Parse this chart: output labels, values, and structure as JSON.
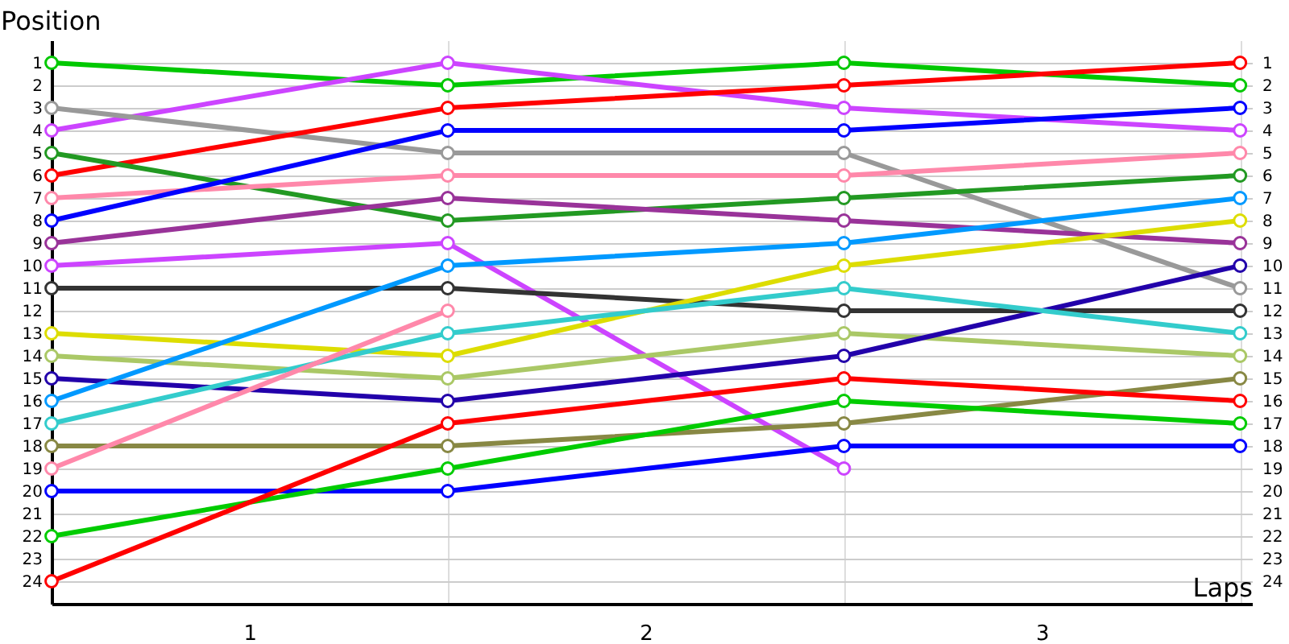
{
  "chart_data": {
    "type": "line",
    "xlabel": "Laps",
    "ylabel": "Position",
    "x": [
      0,
      1,
      2,
      3
    ],
    "xlim": [
      0,
      3.03
    ],
    "xticks": [
      {
        "value": 0,
        "label": null
      },
      {
        "value": 0.5,
        "label": "1"
      },
      {
        "value": 1,
        "label": null
      },
      {
        "value": 1.5,
        "label": "2"
      },
      {
        "value": 2,
        "label": null
      },
      {
        "value": 2.5,
        "label": "3"
      },
      {
        "value": 3,
        "label": null
      }
    ],
    "ylim": [
      25,
      0
    ],
    "yticks": [
      1,
      2,
      3,
      4,
      5,
      6,
      7,
      8,
      9,
      10,
      11,
      12,
      13,
      14,
      15,
      16,
      17,
      18,
      19,
      20,
      21,
      22,
      23,
      24
    ],
    "y2lim": [
      25,
      0
    ],
    "y2ticks": [
      1,
      2,
      3,
      4,
      5,
      6,
      7,
      8,
      9,
      10,
      11,
      12,
      13,
      14,
      15,
      16,
      17,
      18,
      19,
      20,
      21,
      22,
      23,
      24
    ],
    "grid": true,
    "marker": "circle",
    "line_style": "solid",
    "series": [
      {
        "color": "#00c800",
        "values": [
          1,
          2,
          1,
          2
        ]
      },
      {
        "color": "#cc44ff",
        "values": [
          4,
          1,
          3,
          4
        ]
      },
      {
        "color": "#999999",
        "values": [
          3,
          5,
          5,
          11
        ]
      },
      {
        "color": "#ff0000",
        "values": [
          6,
          3,
          2,
          1
        ]
      },
      {
        "color": "#229922",
        "values": [
          5,
          8,
          7,
          6
        ]
      },
      {
        "color": "#ff88aa",
        "values": [
          7,
          6,
          6,
          5
        ]
      },
      {
        "color": "#0000ff",
        "values": [
          8,
          4,
          4,
          3
        ]
      },
      {
        "color": "#993399",
        "values": [
          9,
          7,
          8,
          9
        ]
      },
      {
        "color": "#cc44ff",
        "values": [
          10,
          9,
          19,
          null
        ]
      },
      {
        "color": "#333333",
        "values": [
          11,
          11,
          12,
          12
        ]
      },
      {
        "color": "#dddd00",
        "values": [
          13,
          14,
          10,
          8
        ]
      },
      {
        "color": "#aac866",
        "values": [
          14,
          15,
          13,
          14
        ]
      },
      {
        "color": "#2200aa",
        "values": [
          15,
          16,
          14,
          10
        ]
      },
      {
        "color": "#0099ff",
        "values": [
          16,
          10,
          9,
          7
        ]
      },
      {
        "color": "#33cccc",
        "values": [
          17,
          13,
          11,
          13
        ]
      },
      {
        "color": "#888844",
        "values": [
          18,
          18,
          17,
          15
        ]
      },
      {
        "color": "#ff88aa",
        "values": [
          19,
          12,
          null,
          null
        ]
      },
      {
        "color": "#0000ff",
        "values": [
          20,
          20,
          18,
          18
        ]
      },
      {
        "color": "#00cc00",
        "values": [
          22,
          19,
          16,
          17
        ]
      },
      {
        "color": "#ff0000",
        "values": [
          24,
          17,
          15,
          16
        ]
      }
    ]
  }
}
